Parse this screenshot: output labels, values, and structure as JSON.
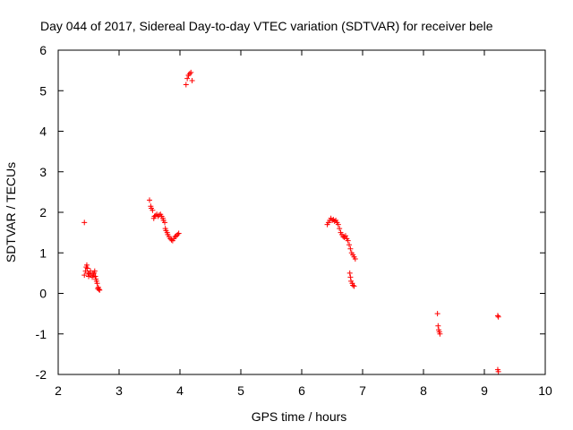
{
  "chart_data": {
    "type": "scatter",
    "title": "Day 044 of 2017, Sidereal Day-to-day VTEC variation (SDTVAR) for receiver bele",
    "xlabel": "GPS time / hours",
    "ylabel": "SDTVAR / TECUs",
    "xlim": [
      2,
      10
    ],
    "ylim": [
      -2,
      6
    ],
    "xticks": [
      2,
      3,
      4,
      5,
      6,
      7,
      8,
      9,
      10
    ],
    "yticks": [
      -2,
      -1,
      0,
      1,
      2,
      3,
      4,
      5,
      6
    ],
    "xtick_labels": [
      "2",
      "3",
      "4",
      "5",
      "6",
      "7",
      "8",
      "9",
      "10"
    ],
    "ytick_labels": [
      "-2",
      "-1",
      "0",
      "1",
      "2",
      "3",
      "4",
      "5",
      "6"
    ],
    "grid": false,
    "marker": "+",
    "marker_color": "#ff0000",
    "series": [
      {
        "name": "SDTVAR",
        "points": [
          [
            2.43,
            1.75
          ],
          [
            2.43,
            0.45
          ],
          [
            2.45,
            0.55
          ],
          [
            2.46,
            0.65
          ],
          [
            2.47,
            0.7
          ],
          [
            2.48,
            0.62
          ],
          [
            2.49,
            0.5
          ],
          [
            2.5,
            0.42
          ],
          [
            2.51,
            0.48
          ],
          [
            2.53,
            0.55
          ],
          [
            2.54,
            0.45
          ],
          [
            2.56,
            0.4
          ],
          [
            2.57,
            0.5
          ],
          [
            2.58,
            0.45
          ],
          [
            2.59,
            0.5
          ],
          [
            2.6,
            0.55
          ],
          [
            2.61,
            0.42
          ],
          [
            2.62,
            0.35
          ],
          [
            2.63,
            0.3
          ],
          [
            2.64,
            0.25
          ],
          [
            2.65,
            0.12
          ],
          [
            2.66,
            0.15
          ],
          [
            2.67,
            0.1
          ],
          [
            2.68,
            0.08
          ],
          [
            3.5,
            2.3
          ],
          [
            3.52,
            2.15
          ],
          [
            3.53,
            2.1
          ],
          [
            3.55,
            2.05
          ],
          [
            3.57,
            1.85
          ],
          [
            3.58,
            1.9
          ],
          [
            3.6,
            1.92
          ],
          [
            3.62,
            1.95
          ],
          [
            3.64,
            1.9
          ],
          [
            3.66,
            1.93
          ],
          [
            3.68,
            1.95
          ],
          [
            3.7,
            1.9
          ],
          [
            3.72,
            1.85
          ],
          [
            3.73,
            1.8
          ],
          [
            3.75,
            1.75
          ],
          [
            3.76,
            1.6
          ],
          [
            3.77,
            1.55
          ],
          [
            3.79,
            1.5
          ],
          [
            3.8,
            1.45
          ],
          [
            3.82,
            1.4
          ],
          [
            3.84,
            1.35
          ],
          [
            3.86,
            1.32
          ],
          [
            3.88,
            1.3
          ],
          [
            3.9,
            1.35
          ],
          [
            3.92,
            1.4
          ],
          [
            3.94,
            1.42
          ],
          [
            3.96,
            1.45
          ],
          [
            3.98,
            1.48
          ],
          [
            4.1,
            5.15
          ],
          [
            4.12,
            5.3
          ],
          [
            4.14,
            5.38
          ],
          [
            4.16,
            5.42
          ],
          [
            4.18,
            5.45
          ],
          [
            4.2,
            5.25
          ],
          [
            6.42,
            1.7
          ],
          [
            6.44,
            1.75
          ],
          [
            6.46,
            1.8
          ],
          [
            6.48,
            1.85
          ],
          [
            6.5,
            1.8
          ],
          [
            6.52,
            1.82
          ],
          [
            6.54,
            1.78
          ],
          [
            6.56,
            1.8
          ],
          [
            6.58,
            1.75
          ],
          [
            6.6,
            1.7
          ],
          [
            6.62,
            1.6
          ],
          [
            6.64,
            1.5
          ],
          [
            6.66,
            1.45
          ],
          [
            6.68,
            1.4
          ],
          [
            6.7,
            1.38
          ],
          [
            6.72,
            1.42
          ],
          [
            6.74,
            1.35
          ],
          [
            6.76,
            1.3
          ],
          [
            6.78,
            1.2
          ],
          [
            6.8,
            1.1
          ],
          [
            6.82,
            1.0
          ],
          [
            6.84,
            0.95
          ],
          [
            6.86,
            0.9
          ],
          [
            6.88,
            0.85
          ],
          [
            6.79,
            0.5
          ],
          [
            6.8,
            0.4
          ],
          [
            6.81,
            0.3
          ],
          [
            6.83,
            0.25
          ],
          [
            6.84,
            0.2
          ],
          [
            6.86,
            0.18
          ],
          [
            8.23,
            -0.5
          ],
          [
            8.24,
            -0.8
          ],
          [
            8.25,
            -0.9
          ],
          [
            8.26,
            -0.95
          ],
          [
            8.27,
            -1.0
          ],
          [
            9.22,
            -0.55
          ],
          [
            9.23,
            -0.58
          ],
          [
            9.22,
            -1.88
          ],
          [
            9.23,
            -1.93
          ]
        ]
      }
    ]
  }
}
